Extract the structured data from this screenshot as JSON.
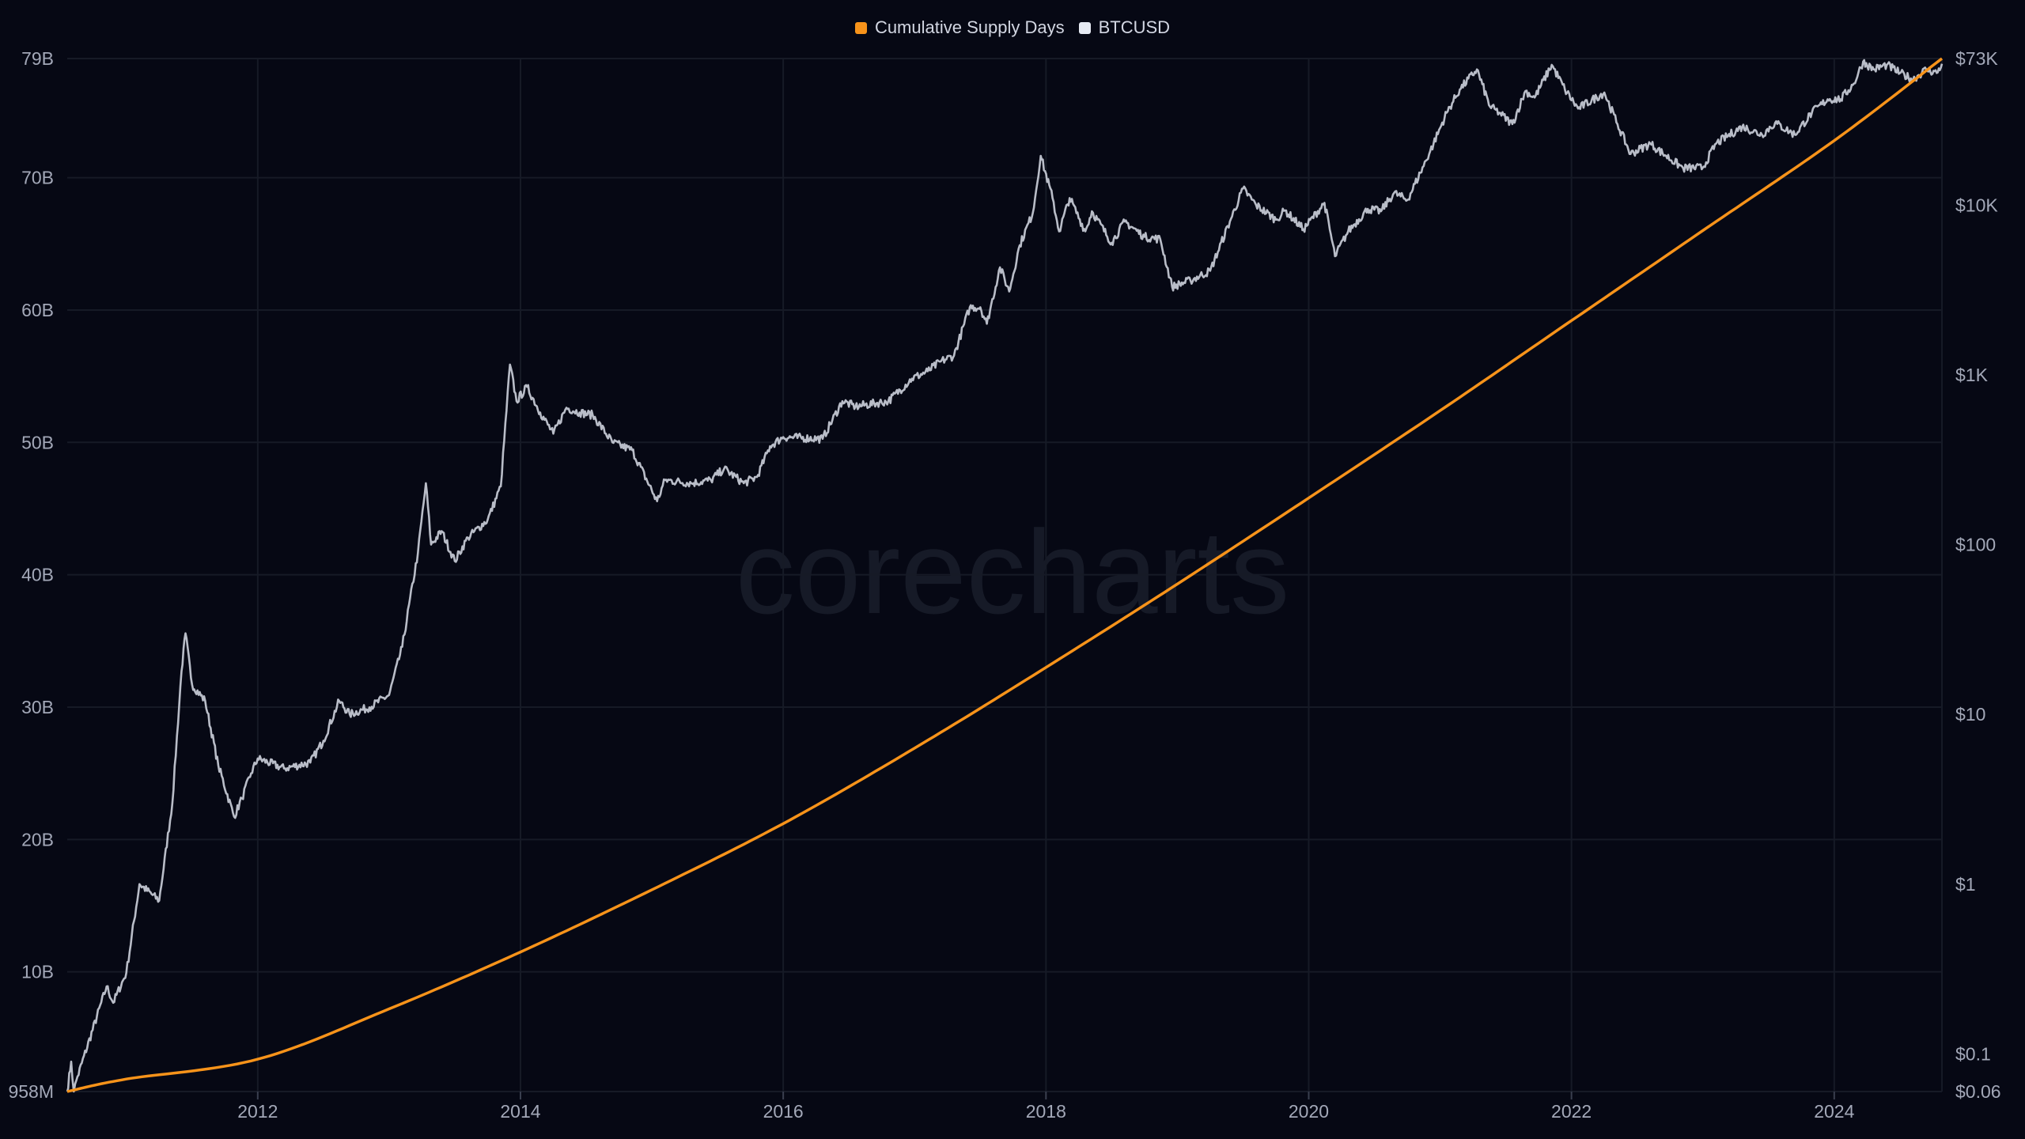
{
  "colors": {
    "background": "#060814",
    "supply": "#f7931a",
    "btc": "#b9bdc8",
    "grid": "#161a26",
    "text": "#a3a8b8"
  },
  "watermark": "corecharts",
  "chart_data": {
    "type": "line",
    "title": "",
    "legend_position": "top-center",
    "legend": [
      {
        "label": "Cumulative Supply Days",
        "color": "#f7931a"
      },
      {
        "label": "BTCUSD",
        "color": "#e6eaf3"
      }
    ],
    "xlim": [
      2010.55,
      2024.82
    ],
    "x_ticks": [
      2012,
      2014,
      2016,
      2018,
      2020,
      2022,
      2024
    ],
    "y_left": {
      "scale": "linear",
      "range": [
        0.958,
        79
      ],
      "unit": "B",
      "ticks": [
        {
          "v": 0.958,
          "label": "958M"
        },
        {
          "v": 10,
          "label": "10B"
        },
        {
          "v": 20,
          "label": "20B"
        },
        {
          "v": 30,
          "label": "30B"
        },
        {
          "v": 40,
          "label": "40B"
        },
        {
          "v": 50,
          "label": "50B"
        },
        {
          "v": 60,
          "label": "60B"
        },
        {
          "v": 70,
          "label": "70B"
        },
        {
          "v": 79,
          "label": "79B"
        }
      ]
    },
    "y_right": {
      "scale": "log",
      "range": [
        0.06,
        73000
      ],
      "ticks": [
        {
          "v": 0.06,
          "label": "$0.06"
        },
        {
          "v": 0.1,
          "label": "$0.1"
        },
        {
          "v": 1,
          "label": "$1"
        },
        {
          "v": 10,
          "label": "$10"
        },
        {
          "v": 100,
          "label": "$100"
        },
        {
          "v": 1000,
          "label": "$1K"
        },
        {
          "v": 10000,
          "label": "$10K"
        },
        {
          "v": 73000,
          "label": "$73K"
        }
      ]
    },
    "series": [
      {
        "name": "Cumulative Supply Days",
        "axis": "left",
        "unit": "billions",
        "points": [
          [
            2010.55,
            0.958
          ],
          [
            2011,
            1.9
          ],
          [
            2012,
            3.4
          ],
          [
            2013,
            7.2
          ],
          [
            2014,
            11.5
          ],
          [
            2015,
            16.2
          ],
          [
            2016,
            21.2
          ],
          [
            2017,
            26.9
          ],
          [
            2018,
            33.0
          ],
          [
            2019,
            39.3
          ],
          [
            2020,
            45.8
          ],
          [
            2021,
            52.4
          ],
          [
            2022,
            59.2
          ],
          [
            2023,
            66.0
          ],
          [
            2024,
            72.8
          ],
          [
            2024.82,
            79
          ]
        ]
      },
      {
        "name": "BTCUSD",
        "axis": "right",
        "unit": "USD",
        "points": [
          [
            2010.55,
            0.06
          ],
          [
            2010.58,
            0.09
          ],
          [
            2010.6,
            0.06
          ],
          [
            2010.62,
            0.07
          ],
          [
            2010.85,
            0.25
          ],
          [
            2010.9,
            0.2
          ],
          [
            2011.0,
            0.3
          ],
          [
            2011.1,
            1.0
          ],
          [
            2011.25,
            0.8
          ],
          [
            2011.35,
            3
          ],
          [
            2011.42,
            18
          ],
          [
            2011.45,
            30
          ],
          [
            2011.5,
            15
          ],
          [
            2011.6,
            12
          ],
          [
            2011.7,
            5
          ],
          [
            2011.82,
            2.5
          ],
          [
            2011.88,
            3.2
          ],
          [
            2011.95,
            4.5
          ],
          [
            2012.0,
            5.5
          ],
          [
            2012.2,
            4.8
          ],
          [
            2012.4,
            5.2
          ],
          [
            2012.5,
            7
          ],
          [
            2012.62,
            12
          ],
          [
            2012.7,
            10
          ],
          [
            2012.85,
            11
          ],
          [
            2013.0,
            13
          ],
          [
            2013.1,
            25
          ],
          [
            2013.22,
            90
          ],
          [
            2013.28,
            230
          ],
          [
            2013.32,
            100
          ],
          [
            2013.4,
            120
          ],
          [
            2013.5,
            80
          ],
          [
            2013.6,
            110
          ],
          [
            2013.75,
            140
          ],
          [
            2013.85,
            220
          ],
          [
            2013.92,
            1150
          ],
          [
            2013.97,
            700
          ],
          [
            2014.05,
            850
          ],
          [
            2014.15,
            600
          ],
          [
            2014.25,
            450
          ],
          [
            2014.35,
            640
          ],
          [
            2014.45,
            600
          ],
          [
            2014.55,
            580
          ],
          [
            2014.7,
            400
          ],
          [
            2014.85,
            360
          ],
          [
            2015.04,
            180
          ],
          [
            2015.1,
            240
          ],
          [
            2015.3,
            230
          ],
          [
            2015.45,
            240
          ],
          [
            2015.55,
            280
          ],
          [
            2015.7,
            230
          ],
          [
            2015.8,
            250
          ],
          [
            2015.9,
            380
          ],
          [
            2016.0,
            430
          ],
          [
            2016.3,
            420
          ],
          [
            2016.45,
            700
          ],
          [
            2016.55,
            650
          ],
          [
            2016.8,
            700
          ],
          [
            2016.98,
            950
          ],
          [
            2017.1,
            1050
          ],
          [
            2017.2,
            1200
          ],
          [
            2017.3,
            1300
          ],
          [
            2017.42,
            2500
          ],
          [
            2017.5,
            2500
          ],
          [
            2017.55,
            2000
          ],
          [
            2017.65,
            4300
          ],
          [
            2017.72,
            3100
          ],
          [
            2017.8,
            5800
          ],
          [
            2017.9,
            9000
          ],
          [
            2017.96,
            19500
          ],
          [
            2018.05,
            11000
          ],
          [
            2018.1,
            7000
          ],
          [
            2018.18,
            11000
          ],
          [
            2018.3,
            7000
          ],
          [
            2018.35,
            9200
          ],
          [
            2018.5,
            6000
          ],
          [
            2018.6,
            8000
          ],
          [
            2018.75,
            6500
          ],
          [
            2018.87,
            6300
          ],
          [
            2018.96,
            3300
          ],
          [
            2019.1,
            3600
          ],
          [
            2019.25,
            4100
          ],
          [
            2019.4,
            8000
          ],
          [
            2019.5,
            12500
          ],
          [
            2019.6,
            10000
          ],
          [
            2019.75,
            8200
          ],
          [
            2019.82,
            9300
          ],
          [
            2019.96,
            7200
          ],
          [
            2020.12,
            10300
          ],
          [
            2020.2,
            5000
          ],
          [
            2020.3,
            7000
          ],
          [
            2020.45,
            9500
          ],
          [
            2020.55,
            9200
          ],
          [
            2020.65,
            11800
          ],
          [
            2020.75,
            10700
          ],
          [
            2020.85,
            15500
          ],
          [
            2020.95,
            23000
          ],
          [
            2021.05,
            35000
          ],
          [
            2021.15,
            48000
          ],
          [
            2021.28,
            63000
          ],
          [
            2021.38,
            38000
          ],
          [
            2021.45,
            35000
          ],
          [
            2021.55,
            30000
          ],
          [
            2021.65,
            47000
          ],
          [
            2021.72,
            43000
          ],
          [
            2021.85,
            67000
          ],
          [
            2021.95,
            48000
          ],
          [
            2022.05,
            37000
          ],
          [
            2022.25,
            46000
          ],
          [
            2022.35,
            30000
          ],
          [
            2022.45,
            20000
          ],
          [
            2022.6,
            23000
          ],
          [
            2022.72,
            19500
          ],
          [
            2022.85,
            16500
          ],
          [
            2023.0,
            16600
          ],
          [
            2023.1,
            23000
          ],
          [
            2023.3,
            29000
          ],
          [
            2023.45,
            26000
          ],
          [
            2023.55,
            30500
          ],
          [
            2023.7,
            26000
          ],
          [
            2023.83,
            35000
          ],
          [
            2023.95,
            42000
          ],
          [
            2024.05,
            42000
          ],
          [
            2024.15,
            52000
          ],
          [
            2024.22,
            70000
          ],
          [
            2024.3,
            63000
          ],
          [
            2024.4,
            67000
          ],
          [
            2024.5,
            60000
          ],
          [
            2024.6,
            55000
          ],
          [
            2024.7,
            63000
          ],
          [
            2024.78,
            60000
          ],
          [
            2024.82,
            68000
          ]
        ]
      }
    ]
  }
}
